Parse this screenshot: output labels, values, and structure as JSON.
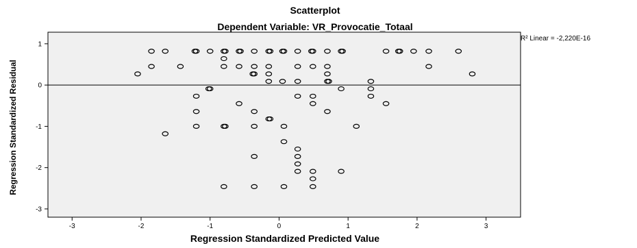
{
  "chart_data": {
    "type": "scatter",
    "title": "Scatterplot",
    "subtitle": "Dependent Variable: VR_Provocatie_Totaal",
    "xlabel": "Regression Standardized Predicted Value",
    "ylabel": "Regression Standardized Residual",
    "xlim": [
      -3.35,
      3.5
    ],
    "ylim": [
      -3.2,
      1.28
    ],
    "xticks": [
      -3,
      -2,
      -1,
      0,
      1,
      2,
      3
    ],
    "yticks": [
      -3,
      -2,
      -1,
      0,
      1
    ],
    "grid": false,
    "reference_line": {
      "y": 0
    },
    "fit_annotation": "R² Linear = -2,220E-16",
    "colors": {
      "plot_bg": "#f0f0f0",
      "marker_stroke": "#000000",
      "axis": "#000000"
    },
    "points": [
      [
        -1.85,
        0.82
      ],
      [
        -1.65,
        0.82
      ],
      [
        -1.22,
        0.82
      ],
      [
        -1.2,
        0.82
      ],
      [
        -1.0,
        0.82
      ],
      [
        -0.8,
        0.82
      ],
      [
        -0.78,
        0.82
      ],
      [
        -0.58,
        0.82
      ],
      [
        -0.56,
        0.82
      ],
      [
        -0.36,
        0.82
      ],
      [
        -0.15,
        0.82
      ],
      [
        -0.13,
        0.82
      ],
      [
        0.05,
        0.82
      ],
      [
        0.07,
        0.82
      ],
      [
        0.27,
        0.82
      ],
      [
        0.47,
        0.82
      ],
      [
        0.49,
        0.82
      ],
      [
        0.7,
        0.82
      ],
      [
        0.9,
        0.82
      ],
      [
        0.92,
        0.82
      ],
      [
        1.55,
        0.82
      ],
      [
        1.73,
        0.82
      ],
      [
        1.75,
        0.82
      ],
      [
        1.95,
        0.82
      ],
      [
        2.17,
        0.82
      ],
      [
        2.6,
        0.82
      ],
      [
        -0.8,
        0.64
      ],
      [
        -1.85,
        0.45
      ],
      [
        -1.43,
        0.45
      ],
      [
        -0.8,
        0.45
      ],
      [
        -0.58,
        0.45
      ],
      [
        -0.36,
        0.45
      ],
      [
        -0.15,
        0.45
      ],
      [
        0.27,
        0.45
      ],
      [
        0.49,
        0.45
      ],
      [
        0.7,
        0.45
      ],
      [
        2.17,
        0.45
      ],
      [
        -2.05,
        0.27
      ],
      [
        -0.38,
        0.27
      ],
      [
        -0.36,
        0.27
      ],
      [
        -0.15,
        0.27
      ],
      [
        0.7,
        0.27
      ],
      [
        2.8,
        0.27
      ],
      [
        -0.15,
        0.09
      ],
      [
        0.05,
        0.09
      ],
      [
        0.27,
        0.09
      ],
      [
        0.7,
        0.09
      ],
      [
        0.72,
        0.09
      ],
      [
        1.33,
        0.09
      ],
      [
        -1.02,
        -0.09
      ],
      [
        -1.0,
        -0.09
      ],
      [
        0.9,
        -0.09
      ],
      [
        1.33,
        -0.09
      ],
      [
        -1.2,
        -0.27
      ],
      [
        0.27,
        -0.27
      ],
      [
        0.49,
        -0.27
      ],
      [
        1.33,
        -0.27
      ],
      [
        -0.58,
        -0.45
      ],
      [
        0.49,
        -0.45
      ],
      [
        1.55,
        -0.45
      ],
      [
        -1.2,
        -0.64
      ],
      [
        -0.36,
        -0.64
      ],
      [
        0.7,
        -0.64
      ],
      [
        -0.15,
        -0.82
      ],
      [
        -0.13,
        -0.82
      ],
      [
        -1.2,
        -1.0
      ],
      [
        -0.8,
        -1.0
      ],
      [
        -0.78,
        -1.0
      ],
      [
        -0.36,
        -1.0
      ],
      [
        0.07,
        -1.0
      ],
      [
        1.12,
        -1.0
      ],
      [
        -1.65,
        -1.18
      ],
      [
        0.07,
        -1.37
      ],
      [
        0.27,
        -1.55
      ],
      [
        -0.36,
        -1.73
      ],
      [
        0.27,
        -1.73
      ],
      [
        0.27,
        -1.91
      ],
      [
        0.27,
        -2.09
      ],
      [
        0.49,
        -2.09
      ],
      [
        0.9,
        -2.09
      ],
      [
        0.49,
        -2.27
      ],
      [
        -0.8,
        -2.46
      ],
      [
        -0.36,
        -2.46
      ],
      [
        0.07,
        -2.46
      ],
      [
        0.49,
        -2.46
      ]
    ]
  }
}
